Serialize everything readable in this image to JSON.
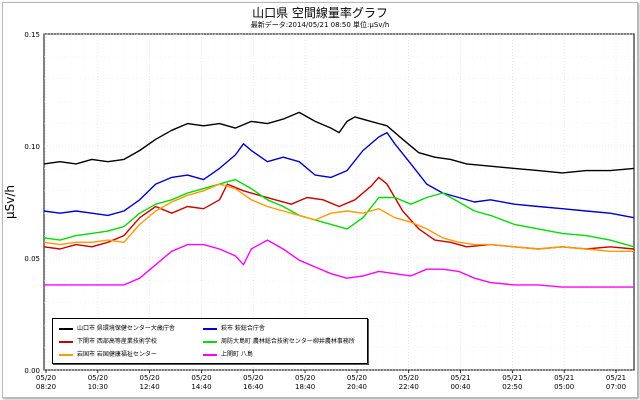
{
  "header": {
    "title": "山口県 空間線量率グラフ",
    "subtitle": "最新データ:2014/05/21 08:50 単位:μSv/h"
  },
  "chart_data": {
    "type": "line",
    "title": "山口県 空間線量率グラフ",
    "subtitle": "最新データ:2014/05/21 08:50 単位:μSv/h",
    "xlabel": "",
    "ylabel": "μSv/h",
    "ylim": [
      0,
      0.15
    ],
    "yticks": [
      "0.00",
      "0.05",
      "0.10",
      "0.15"
    ],
    "yticks_values": [
      0,
      0.05,
      0.1,
      0.15
    ],
    "xticks": [
      {
        "date": "05/20",
        "time": "08:20"
      },
      {
        "date": "05/20",
        "time": "10:30"
      },
      {
        "date": "05/20",
        "time": "12:40"
      },
      {
        "date": "05/20",
        "time": "14:40"
      },
      {
        "date": "05/20",
        "time": "16:40"
      },
      {
        "date": "05/20",
        "time": "18:40"
      },
      {
        "date": "05/20",
        "time": "20:40"
      },
      {
        "date": "05/20",
        "time": "22:40"
      },
      {
        "date": "05/21",
        "time": "00:40"
      },
      {
        "date": "05/21",
        "time": "02:50"
      },
      {
        "date": "05/21",
        "time": "05:00"
      },
      {
        "date": "05/21",
        "time": "07:00"
      }
    ],
    "x_hours_range": [
      8.33,
      33.0
    ],
    "grid": true,
    "legend_position": "bottom-left",
    "series": [
      {
        "name": "山口市 県環境保健センター大歳庁舎",
        "color": "#000000",
        "points": [
          [
            8.33,
            0.092
          ],
          [
            9,
            0.093
          ],
          [
            9.67,
            0.092
          ],
          [
            10.33,
            0.094
          ],
          [
            11,
            0.093
          ],
          [
            11.67,
            0.094
          ],
          [
            12.33,
            0.098
          ],
          [
            13,
            0.103
          ],
          [
            13.67,
            0.107
          ],
          [
            14.33,
            0.11
          ],
          [
            15,
            0.109
          ],
          [
            15.67,
            0.11
          ],
          [
            16.33,
            0.108
          ],
          [
            17,
            0.111
          ],
          [
            17.67,
            0.11
          ],
          [
            18.33,
            0.112
          ],
          [
            19,
            0.115
          ],
          [
            19.67,
            0.111
          ],
          [
            20.33,
            0.108
          ],
          [
            20.67,
            0.106
          ],
          [
            21,
            0.111
          ],
          [
            21.33,
            0.113
          ],
          [
            22,
            0.111
          ],
          [
            22.67,
            0.109
          ],
          [
            23.33,
            0.103
          ],
          [
            24,
            0.097
          ],
          [
            24.67,
            0.095
          ],
          [
            25.33,
            0.094
          ],
          [
            26,
            0.092
          ],
          [
            27,
            0.091
          ],
          [
            28,
            0.09
          ],
          [
            29,
            0.089
          ],
          [
            30,
            0.088
          ],
          [
            31,
            0.089
          ],
          [
            32,
            0.089
          ],
          [
            33,
            0.09
          ]
        ]
      },
      {
        "name": "萩市 萩総合庁舎",
        "color": "#0000cc",
        "points": [
          [
            8.33,
            0.071
          ],
          [
            9,
            0.07
          ],
          [
            9.67,
            0.071
          ],
          [
            10.33,
            0.07
          ],
          [
            11,
            0.069
          ],
          [
            11.67,
            0.071
          ],
          [
            12.33,
            0.076
          ],
          [
            13,
            0.083
          ],
          [
            13.67,
            0.086
          ],
          [
            14.33,
            0.087
          ],
          [
            15,
            0.085
          ],
          [
            15.67,
            0.09
          ],
          [
            16.33,
            0.096
          ],
          [
            16.67,
            0.101
          ],
          [
            17,
            0.098
          ],
          [
            17.67,
            0.093
          ],
          [
            18.33,
            0.095
          ],
          [
            19,
            0.093
          ],
          [
            19.67,
            0.087
          ],
          [
            20.33,
            0.086
          ],
          [
            21,
            0.089
          ],
          [
            21.67,
            0.098
          ],
          [
            22.33,
            0.104
          ],
          [
            22.67,
            0.106
          ],
          [
            23,
            0.101
          ],
          [
            23.67,
            0.092
          ],
          [
            24.33,
            0.083
          ],
          [
            25,
            0.079
          ],
          [
            25.67,
            0.077
          ],
          [
            26.33,
            0.075
          ],
          [
            27,
            0.076
          ],
          [
            28,
            0.074
          ],
          [
            29,
            0.073
          ],
          [
            30,
            0.072
          ],
          [
            31,
            0.071
          ],
          [
            32,
            0.07
          ],
          [
            33,
            0.068
          ]
        ]
      },
      {
        "name": "下関市 西部高等産業技術学校",
        "color": "#cc0000",
        "points": [
          [
            8.33,
            0.055
          ],
          [
            9,
            0.054
          ],
          [
            9.67,
            0.056
          ],
          [
            10.33,
            0.055
          ],
          [
            11,
            0.057
          ],
          [
            11.67,
            0.06
          ],
          [
            12.33,
            0.068
          ],
          [
            13,
            0.073
          ],
          [
            13.67,
            0.07
          ],
          [
            14.33,
            0.073
          ],
          [
            15,
            0.072
          ],
          [
            15.67,
            0.076
          ],
          [
            16,
            0.083
          ],
          [
            16.67,
            0.08
          ],
          [
            17.33,
            0.078
          ],
          [
            18,
            0.076
          ],
          [
            18.67,
            0.074
          ],
          [
            19.33,
            0.077
          ],
          [
            20,
            0.076
          ],
          [
            20.67,
            0.073
          ],
          [
            21.33,
            0.076
          ],
          [
            22,
            0.082
          ],
          [
            22.33,
            0.086
          ],
          [
            22.67,
            0.083
          ],
          [
            23.33,
            0.071
          ],
          [
            24,
            0.063
          ],
          [
            24.67,
            0.058
          ],
          [
            25.33,
            0.057
          ],
          [
            26,
            0.055
          ],
          [
            27,
            0.056
          ],
          [
            28,
            0.055
          ],
          [
            29,
            0.054
          ],
          [
            30,
            0.055
          ],
          [
            31,
            0.054
          ],
          [
            32,
            0.055
          ],
          [
            33,
            0.054
          ]
        ]
      },
      {
        "name": "周防大島町 農林総合技術センター柳井農林事務所",
        "color": "#00dd00",
        "points": [
          [
            8.33,
            0.059
          ],
          [
            9,
            0.058
          ],
          [
            9.67,
            0.06
          ],
          [
            10.33,
            0.061
          ],
          [
            11,
            0.062
          ],
          [
            11.67,
            0.064
          ],
          [
            12.33,
            0.07
          ],
          [
            13,
            0.074
          ],
          [
            13.67,
            0.076
          ],
          [
            14.33,
            0.079
          ],
          [
            15,
            0.081
          ],
          [
            15.67,
            0.083
          ],
          [
            16.33,
            0.085
          ],
          [
            17,
            0.081
          ],
          [
            17.67,
            0.076
          ],
          [
            18.33,
            0.073
          ],
          [
            19,
            0.069
          ],
          [
            19.67,
            0.067
          ],
          [
            20.33,
            0.065
          ],
          [
            21,
            0.063
          ],
          [
            21.67,
            0.068
          ],
          [
            22.33,
            0.077
          ],
          [
            23,
            0.077
          ],
          [
            23.67,
            0.074
          ],
          [
            24.33,
            0.077
          ],
          [
            25,
            0.079
          ],
          [
            25.67,
            0.075
          ],
          [
            26.33,
            0.071
          ],
          [
            27,
            0.069
          ],
          [
            28,
            0.065
          ],
          [
            29,
            0.063
          ],
          [
            30,
            0.061
          ],
          [
            31,
            0.06
          ],
          [
            32,
            0.058
          ],
          [
            33,
            0.055
          ]
        ]
      },
      {
        "name": "岩国市 岩国健康福祉センター",
        "color": "#ff9900",
        "points": [
          [
            8.33,
            0.057
          ],
          [
            9,
            0.056
          ],
          [
            9.67,
            0.057
          ],
          [
            10.33,
            0.057
          ],
          [
            11,
            0.058
          ],
          [
            11.67,
            0.057
          ],
          [
            12.33,
            0.065
          ],
          [
            13,
            0.071
          ],
          [
            13.67,
            0.075
          ],
          [
            14.33,
            0.078
          ],
          [
            15,
            0.08
          ],
          [
            15.67,
            0.083
          ],
          [
            16.33,
            0.081
          ],
          [
            17,
            0.076
          ],
          [
            17.67,
            0.073
          ],
          [
            18.33,
            0.071
          ],
          [
            19,
            0.069
          ],
          [
            19.67,
            0.067
          ],
          [
            20.33,
            0.07
          ],
          [
            21,
            0.071
          ],
          [
            21.67,
            0.07
          ],
          [
            22.33,
            0.072
          ],
          [
            23,
            0.068
          ],
          [
            23.67,
            0.066
          ],
          [
            24.33,
            0.063
          ],
          [
            25,
            0.059
          ],
          [
            25.67,
            0.057
          ],
          [
            26.33,
            0.056
          ],
          [
            27,
            0.056
          ],
          [
            28,
            0.055
          ],
          [
            29,
            0.054
          ],
          [
            30,
            0.055
          ],
          [
            31,
            0.054
          ],
          [
            32,
            0.053
          ],
          [
            33,
            0.053
          ]
        ]
      },
      {
        "name": "上関町 八島",
        "color": "#ff00ff",
        "points": [
          [
            8.33,
            0.038
          ],
          [
            9,
            0.038
          ],
          [
            9.67,
            0.038
          ],
          [
            10.33,
            0.038
          ],
          [
            11,
            0.038
          ],
          [
            11.67,
            0.038
          ],
          [
            12.33,
            0.041
          ],
          [
            13,
            0.047
          ],
          [
            13.67,
            0.053
          ],
          [
            14.33,
            0.056
          ],
          [
            15,
            0.056
          ],
          [
            15.67,
            0.054
          ],
          [
            16.33,
            0.051
          ],
          [
            16.67,
            0.047
          ],
          [
            17,
            0.054
          ],
          [
            17.67,
            0.058
          ],
          [
            18.33,
            0.054
          ],
          [
            19,
            0.049
          ],
          [
            19.67,
            0.046
          ],
          [
            20.33,
            0.043
          ],
          [
            21,
            0.041
          ],
          [
            21.67,
            0.042
          ],
          [
            22.33,
            0.044
          ],
          [
            23,
            0.043
          ],
          [
            23.67,
            0.042
          ],
          [
            24.33,
            0.045
          ],
          [
            25,
            0.045
          ],
          [
            25.67,
            0.044
          ],
          [
            26.33,
            0.041
          ],
          [
            27,
            0.039
          ],
          [
            28,
            0.038
          ],
          [
            29,
            0.038
          ],
          [
            30,
            0.037
          ],
          [
            31,
            0.037
          ],
          [
            32,
            0.037
          ],
          [
            33,
            0.037
          ]
        ]
      }
    ]
  }
}
